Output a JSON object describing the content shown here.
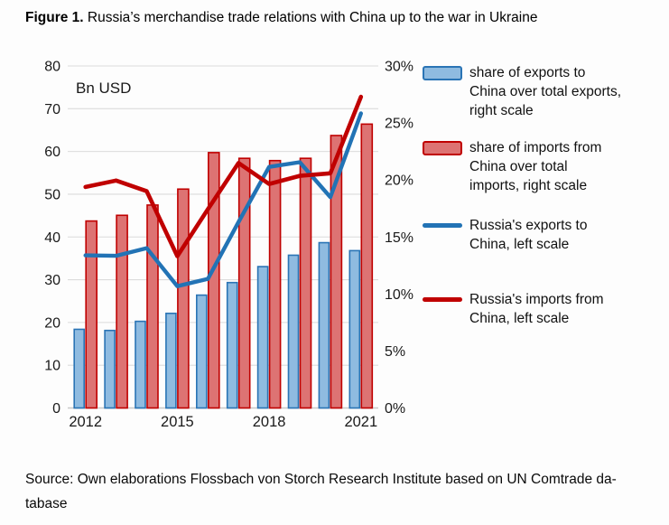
{
  "title": {
    "prefix": "Figure 1.",
    "rest": " Russia’s merchandise trade relations with China up to the war in Ukraine"
  },
  "source": "Source: Own elaborations Flossbach von Storch Research Institute based on UN Comtrade da-\ntabase",
  "legend": {
    "items": [
      {
        "id": "export-share",
        "swatch": "bar-blue",
        "label": "share of exports to\nChina over total exports,\nright scale"
      },
      {
        "id": "import-share",
        "swatch": "bar-red",
        "label": "share of imports from\nChina over total\nimports, right scale"
      },
      {
        "id": "exports-line",
        "swatch": "line-blue",
        "label": "Russia's exports to\nChina, left scale"
      },
      {
        "id": "imports-line",
        "swatch": "line-red",
        "label": "Russia's imports from\nChina, left scale"
      }
    ]
  },
  "chart_data": {
    "type": "combo-bar-line",
    "unit_label": "Bn USD",
    "x": [
      2012,
      2013,
      2014,
      2015,
      2016,
      2017,
      2018,
      2019,
      2020,
      2021
    ],
    "x_tick_labels": [
      "2012",
      "2015",
      "2018",
      "2021"
    ],
    "left_axis": {
      "label": "Bn USD",
      "min": 0,
      "max": 80,
      "ticks": [
        0,
        10,
        20,
        30,
        40,
        50,
        60,
        70,
        80
      ]
    },
    "right_axis": {
      "min": 0,
      "max": 30,
      "ticks": [
        0,
        5,
        10,
        15,
        20,
        25,
        30
      ],
      "tick_labels": [
        "0%",
        "5%",
        "10%",
        "15%",
        "20%",
        "25%",
        "30%"
      ]
    },
    "grid": true,
    "legend_position": "right",
    "series": [
      {
        "name": "share of exports to China over total exports, right scale",
        "type": "bar",
        "axis": "right",
        "values": [
          6.9,
          6.8,
          7.6,
          8.3,
          9.9,
          11.0,
          12.4,
          13.4,
          14.5,
          13.8
        ],
        "fill": "#8fbbe0",
        "stroke": "#2a74b5"
      },
      {
        "name": "share of imports from China over total imports, right scale",
        "type": "bar",
        "axis": "right",
        "values": [
          16.4,
          16.9,
          17.8,
          19.2,
          22.4,
          21.9,
          21.7,
          21.9,
          23.9,
          24.9
        ],
        "fill": "#dd7373",
        "stroke": "#c00000"
      },
      {
        "name": "Russia's exports to China, left scale",
        "type": "line",
        "axis": "left",
        "values": [
          35.7,
          35.6,
          37.4,
          28.5,
          30.2,
          43.5,
          56.4,
          57.5,
          49.3,
          68.9
        ],
        "stroke": "#2273b5"
      },
      {
        "name": "Russia's imports from China, left scale",
        "type": "line",
        "axis": "left",
        "values": [
          51.7,
          53.2,
          50.7,
          35.5,
          46.5,
          57.3,
          52.4,
          54.3,
          54.9,
          72.8
        ],
        "stroke": "#c00000"
      }
    ],
    "colors": {
      "grid": "#dcdcdc",
      "axis_line": "#c8c8c8",
      "blue": "#2273b5",
      "blue_fill": "#8fbbe0",
      "red": "#c00000",
      "red_fill": "#dd7373"
    }
  }
}
